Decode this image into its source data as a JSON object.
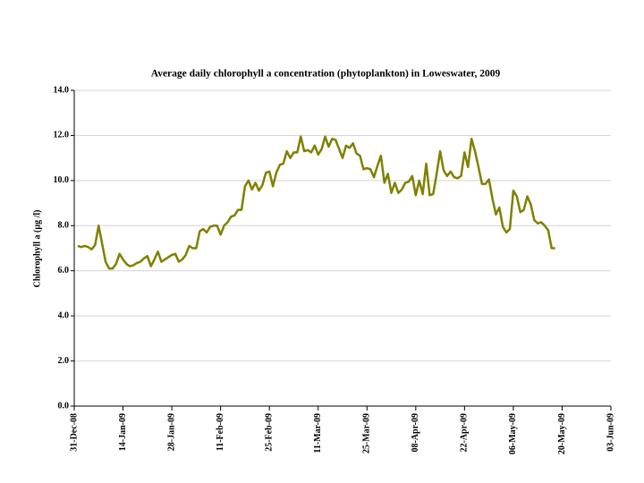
{
  "chart_data": {
    "type": "line",
    "title": "Average daily chlorophyll a concentration (phytoplankton) in Loweswater, 2009",
    "y_label": "Chlorophyll a (µg /l)",
    "x": [
      "2009-01-01",
      "2009-01-02",
      "2009-01-03",
      "2009-01-04",
      "2009-01-05",
      "2009-01-06",
      "2009-01-07",
      "2009-01-08",
      "2009-01-09",
      "2009-01-10",
      "2009-01-11",
      "2009-01-12",
      "2009-01-13",
      "2009-01-14",
      "2009-01-15",
      "2009-01-16",
      "2009-01-17",
      "2009-01-18",
      "2009-01-19",
      "2009-01-20",
      "2009-01-21",
      "2009-01-22",
      "2009-01-23",
      "2009-01-24",
      "2009-01-25",
      "2009-01-26",
      "2009-01-27",
      "2009-01-28",
      "2009-01-29",
      "2009-01-30",
      "2009-01-31",
      "2009-02-01",
      "2009-02-02",
      "2009-02-03",
      "2009-02-04",
      "2009-02-05",
      "2009-02-06",
      "2009-02-07",
      "2009-02-08",
      "2009-02-09",
      "2009-02-10",
      "2009-02-11",
      "2009-02-12",
      "2009-02-13",
      "2009-02-14",
      "2009-02-15",
      "2009-02-16",
      "2009-02-17",
      "2009-02-18",
      "2009-02-19",
      "2009-02-20",
      "2009-02-21",
      "2009-02-22",
      "2009-02-23",
      "2009-02-24",
      "2009-02-25",
      "2009-02-26",
      "2009-02-27",
      "2009-02-28",
      "2009-03-01",
      "2009-03-02",
      "2009-03-03",
      "2009-03-04",
      "2009-03-05",
      "2009-03-06",
      "2009-03-07",
      "2009-03-08",
      "2009-03-09",
      "2009-03-10",
      "2009-03-11",
      "2009-03-12",
      "2009-03-13",
      "2009-03-14",
      "2009-03-15",
      "2009-03-16",
      "2009-03-17",
      "2009-03-18",
      "2009-03-19",
      "2009-03-20",
      "2009-03-21",
      "2009-03-22",
      "2009-03-23",
      "2009-03-24",
      "2009-03-25",
      "2009-03-26",
      "2009-03-27",
      "2009-03-28",
      "2009-03-29",
      "2009-03-30",
      "2009-03-31",
      "2009-04-01",
      "2009-04-02",
      "2009-04-03",
      "2009-04-04",
      "2009-04-05",
      "2009-04-06",
      "2009-04-07",
      "2009-04-08",
      "2009-04-09",
      "2009-04-10",
      "2009-04-11",
      "2009-04-12",
      "2009-04-13",
      "2009-04-14",
      "2009-04-15",
      "2009-04-16",
      "2009-04-17",
      "2009-04-18",
      "2009-04-19",
      "2009-04-20",
      "2009-04-21",
      "2009-04-22",
      "2009-04-23",
      "2009-04-24",
      "2009-04-25",
      "2009-04-26",
      "2009-04-27",
      "2009-04-28",
      "2009-04-29",
      "2009-04-30",
      "2009-05-01",
      "2009-05-02",
      "2009-05-03",
      "2009-05-04",
      "2009-05-05",
      "2009-05-06",
      "2009-05-07",
      "2009-05-08",
      "2009-05-09",
      "2009-05-10",
      "2009-05-11",
      "2009-05-12",
      "2009-05-13",
      "2009-05-14",
      "2009-05-15",
      "2009-05-16",
      "2009-05-17",
      "2009-05-18"
    ],
    "series": [
      {
        "color": "#808000",
        "values": [
          7.1,
          7.05,
          7.1,
          7.05,
          6.95,
          7.15,
          8.0,
          7.2,
          6.4,
          6.1,
          6.1,
          6.3,
          6.75,
          6.5,
          6.3,
          6.2,
          6.25,
          6.35,
          6.4,
          6.55,
          6.65,
          6.2,
          6.5,
          6.85,
          6.4,
          6.5,
          6.6,
          6.7,
          6.75,
          6.4,
          6.5,
          6.7,
          7.1,
          7.0,
          7.0,
          7.75,
          7.85,
          7.7,
          7.95,
          8.0,
          8.0,
          7.6,
          8.0,
          8.15,
          8.4,
          8.45,
          8.7,
          8.7,
          9.75,
          10.0,
          9.6,
          9.9,
          9.55,
          9.8,
          10.35,
          10.4,
          9.75,
          10.35,
          10.7,
          10.75,
          11.3,
          11.0,
          11.25,
          11.25,
          11.95,
          11.3,
          11.35,
          11.25,
          11.55,
          11.15,
          11.4,
          11.95,
          11.5,
          11.85,
          11.8,
          11.4,
          11.0,
          11.55,
          11.45,
          11.65,
          11.2,
          11.1,
          10.5,
          10.55,
          10.5,
          10.15,
          10.65,
          11.1,
          9.9,
          10.3,
          9.45,
          9.9,
          9.45,
          9.6,
          9.9,
          9.95,
          10.2,
          9.35,
          10.0,
          9.4,
          10.75,
          9.35,
          9.4,
          10.3,
          11.3,
          10.45,
          10.2,
          10.4,
          10.15,
          10.1,
          10.2,
          11.25,
          10.6,
          11.85,
          11.3,
          10.6,
          9.85,
          9.85,
          10.05,
          9.2,
          8.5,
          8.8,
          7.95,
          7.7,
          7.85,
          9.55,
          9.3,
          8.6,
          8.7,
          9.3,
          8.95,
          8.25,
          8.1,
          8.15,
          8.0,
          7.8,
          7.0,
          7.0
        ]
      }
    ],
    "xlim": [
      "2008-12-31",
      "2009-06-03"
    ],
    "xticks": [
      {
        "value": "2008-12-31",
        "label": "31-Dec-08"
      },
      {
        "value": "2009-01-14",
        "label": "14-Jan-09"
      },
      {
        "value": "2009-01-28",
        "label": "28-Jan-09"
      },
      {
        "value": "2009-02-11",
        "label": "11-Feb-09"
      },
      {
        "value": "2009-02-25",
        "label": "25-Feb-09"
      },
      {
        "value": "2009-03-11",
        "label": "11-Mar-09"
      },
      {
        "value": "2009-03-25",
        "label": "25-Mar-09"
      },
      {
        "value": "2009-04-08",
        "label": "08-Apr-09"
      },
      {
        "value": "2009-04-22",
        "label": "22-Apr-09"
      },
      {
        "value": "2009-05-06",
        "label": "06-May-09"
      },
      {
        "value": "2009-05-20",
        "label": "20-May-09"
      },
      {
        "value": "2009-06-03",
        "label": "03-Jun-09"
      }
    ],
    "ylim": [
      0,
      14
    ],
    "yticks": [
      {
        "value": 0,
        "label": "0.0"
      },
      {
        "value": 2,
        "label": "2.0"
      },
      {
        "value": 4,
        "label": "4.0"
      },
      {
        "value": 6,
        "label": "6.0"
      },
      {
        "value": 8,
        "label": "8.0"
      },
      {
        "value": 10,
        "label": "10.0"
      },
      {
        "value": 12,
        "label": "12.0"
      },
      {
        "value": 14,
        "label": "14.0"
      }
    ],
    "grid": true
  }
}
